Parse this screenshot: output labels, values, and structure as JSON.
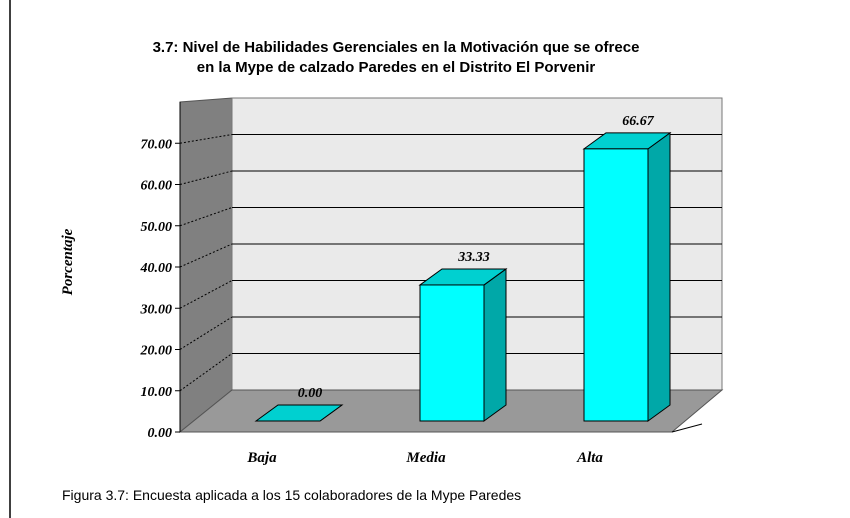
{
  "chart_data": {
    "type": "bar3d",
    "title": [
      "3.7: Nivel de Habilidades Gerenciales en la Motivación que se ofrece",
      "en la Mype de calzado Paredes en el Distrito El Porvenir"
    ],
    "y_label": "Porcentaje",
    "caption": "Figura 3.7: Encuesta aplicada a los 15 colaboradores de la Mype Paredes",
    "categories": [
      "Baja",
      "Media",
      "Alta"
    ],
    "values": [
      0,
      33.33,
      66.67
    ],
    "value_labels": [
      "0.00",
      "33.33",
      "66.67"
    ],
    "color": "#00ffff",
    "ylim": [
      0,
      80
    ],
    "yticks": [
      {
        "value": 0,
        "label": "0.00"
      },
      {
        "value": 10,
        "label": "10.00"
      },
      {
        "value": 20,
        "label": "20.00"
      },
      {
        "value": 30,
        "label": "30.00"
      },
      {
        "value": 40,
        "label": "40.00"
      },
      {
        "value": 50,
        "label": "50.00"
      },
      {
        "value": 60,
        "label": "60.00"
      },
      {
        "value": 70,
        "label": "70.00"
      }
    ],
    "grid": true
  }
}
